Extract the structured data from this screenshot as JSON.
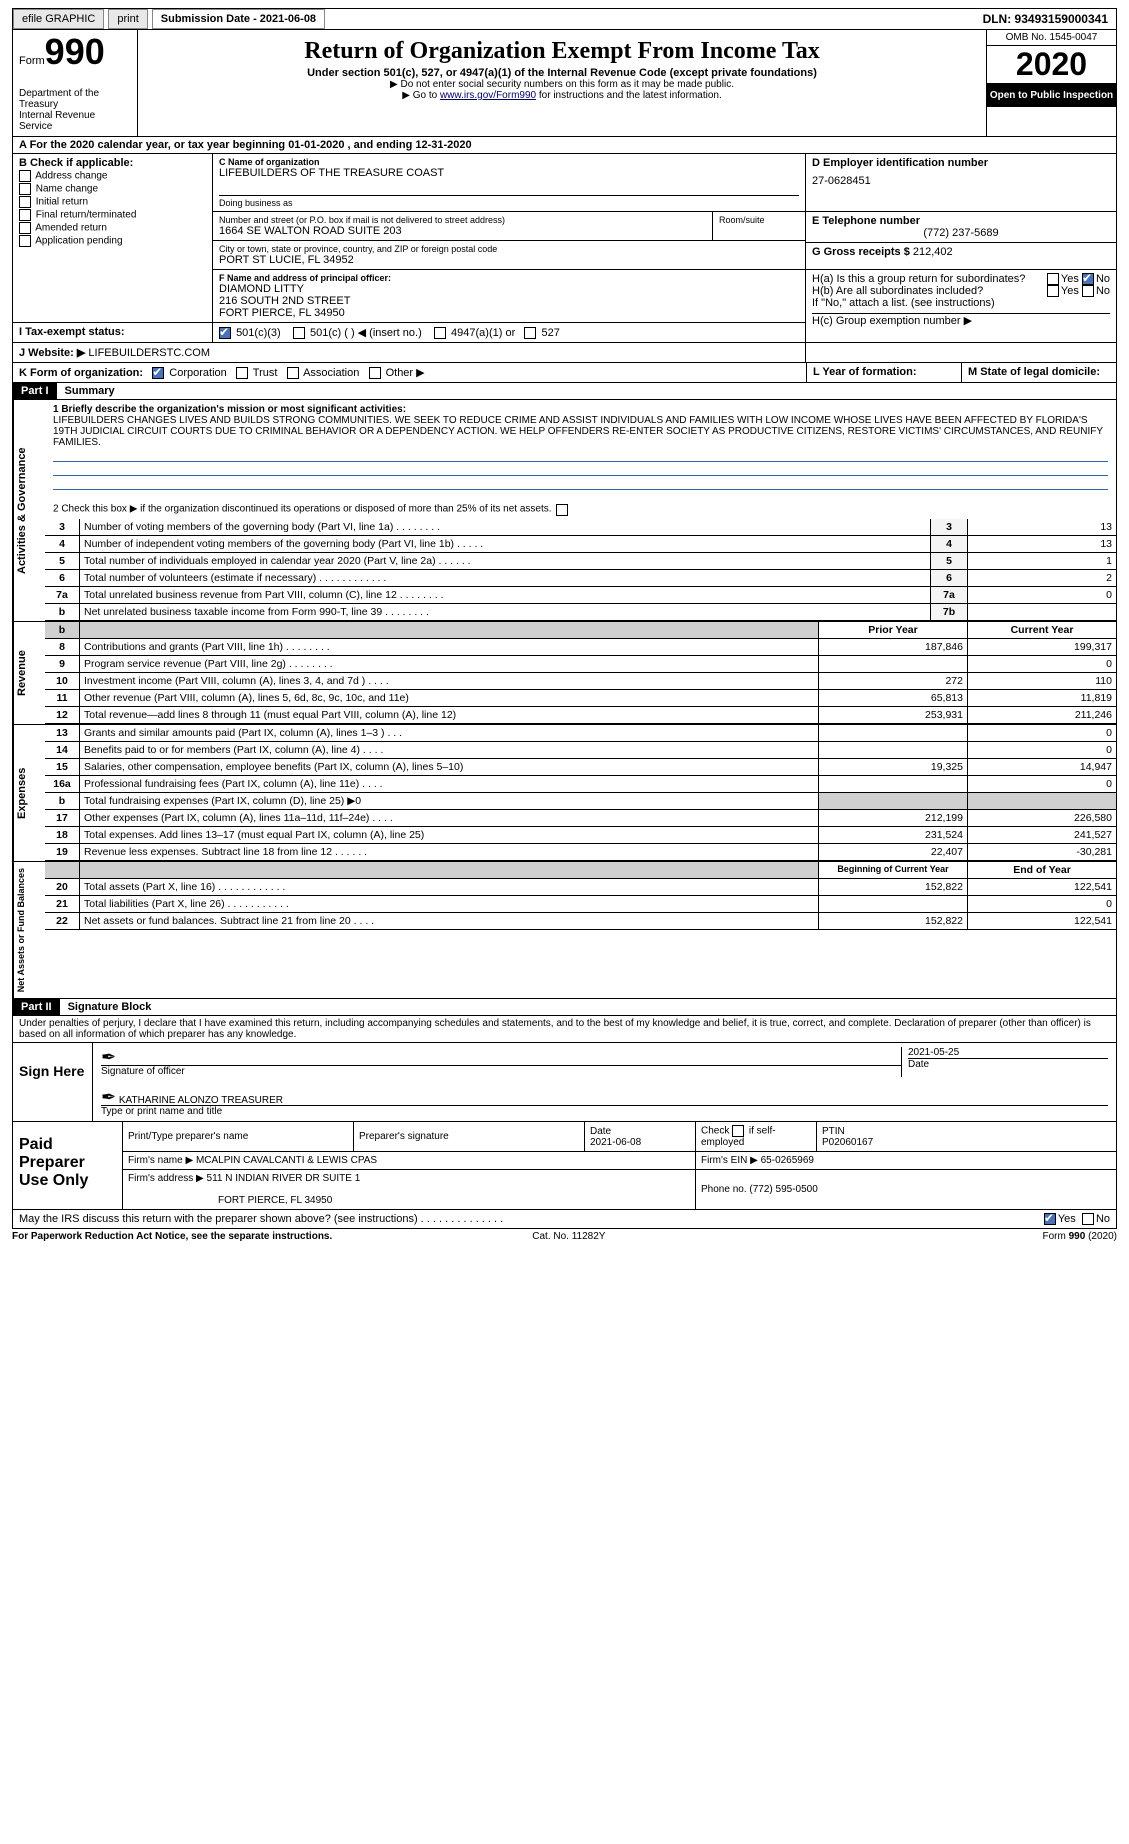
{
  "topbar": {
    "efile": "efile GRAPHIC",
    "print": "print",
    "subdate_label": "Submission Date - 2021-06-08",
    "dln": "DLN: 93493159000341"
  },
  "header": {
    "form": "Form",
    "form_num": "990",
    "dept": "Department of the Treasury\nInternal Revenue Service",
    "title": "Return of Organization Exempt From Income Tax",
    "subtitle": "Under section 501(c), 527, or 4947(a)(1) of the Internal Revenue Code (except private foundations)",
    "note1": "▶ Do not enter social security numbers on this form as it may be made public.",
    "note2_pre": "▶ Go to ",
    "note2_link": "www.irs.gov/Form990",
    "note2_post": " for instructions and the latest information.",
    "omb": "OMB No. 1545-0047",
    "year": "2020",
    "open": "Open to Public Inspection"
  },
  "lineA": "A For the 2020 calendar year, or tax year beginning 01-01-2020    , and ending 12-31-2020",
  "boxB": {
    "label": "B Check if applicable:",
    "items": [
      "Address change",
      "Name change",
      "Initial return",
      "Final return/terminated",
      "Amended return",
      "Application pending"
    ]
  },
  "boxC": {
    "label": "C Name of organization",
    "name": "LIFEBUILDERS OF THE TREASURE COAST",
    "dba": "Doing business as",
    "street_label": "Number and street (or P.O. box if mail is not delivered to street address)",
    "room": "Room/suite",
    "street": "1664 SE WALTON ROAD SUITE 203",
    "city_label": "City or town, state or province, country, and ZIP or foreign postal code",
    "city": "PORT ST LUCIE, FL  34952"
  },
  "boxD": {
    "label": "D Employer identification number",
    "val": "27-0628451"
  },
  "boxE": {
    "label": "E Telephone number",
    "val": "(772) 237-5689"
  },
  "boxG": {
    "label": "G Gross receipts $",
    "val": "212,402"
  },
  "boxF": {
    "label": "F  Name and address of principal officer:",
    "name": "DIAMOND LITTY",
    "l1": "216 SOUTH 2ND STREET",
    "l2": "FORT PIERCE, FL  34950"
  },
  "boxH": {
    "a": "H(a)  Is this a group return for subordinates?",
    "b": "H(b)  Are all subordinates included?",
    "note": "If \"No,\" attach a list. (see instructions)",
    "c": "H(c)  Group exemption number ▶",
    "yes": "Yes",
    "no": "No"
  },
  "boxI": {
    "label": "I   Tax-exempt status:",
    "o1": "501(c)(3)",
    "o2": "501(c) (   ) ◀ (insert no.)",
    "o3": "4947(a)(1) or",
    "o4": "527"
  },
  "boxJ": {
    "label": "J  Website: ▶",
    "val": "LIFEBUILDERSTC.COM"
  },
  "boxK": {
    "label": "K Form of organization:",
    "o1": "Corporation",
    "o2": "Trust",
    "o3": "Association",
    "o4": "Other ▶"
  },
  "boxL": {
    "label": "L Year of formation:"
  },
  "boxM": {
    "label": "M State of legal domicile:"
  },
  "part1": {
    "hdr": "Part I",
    "title": "Summary"
  },
  "gov": {
    "side": "Activities & Governance",
    "l1": "1   Briefly describe the organization's mission or most significant activities:",
    "mission": "LIFEBUILDERS CHANGES LIVES AND BUILDS STRONG COMMUNITIES. WE SEEK TO REDUCE CRIME AND ASSIST INDIVIDUALS AND FAMILIES WITH LOW INCOME WHOSE LIVES HAVE BEEN AFFECTED BY FLORIDA'S 19TH JUDICIAL CIRCUIT COURTS DUE TO CRIMINAL BEHAVIOR OR A DEPENDENCY ACTION. WE HELP OFFENDERS RE-ENTER SOCIETY AS PRODUCTIVE CITIZENS, RESTORE VICTIMS' CIRCUMSTANCES, AND REUNIFY FAMILIES.",
    "l2": "2   Check this box ▶        if the organization discontinued its operations or disposed of more than 25% of its net assets.",
    "rows": [
      {
        "n": "3",
        "t": "Number of voting members of the governing body (Part VI, line 1a)  .   .   .   .   .   .   .   .",
        "lab": "3",
        "v": "13"
      },
      {
        "n": "4",
        "t": "Number of independent voting members of the governing body (Part VI, line 1b)  .   .   .   .   .",
        "lab": "4",
        "v": "13"
      },
      {
        "n": "5",
        "t": "Total number of individuals employed in calendar year 2020 (Part V, line 2a)  .   .   .   .   .   .",
        "lab": "5",
        "v": "1"
      },
      {
        "n": "6",
        "t": "Total number of volunteers (estimate if necessary)   .   .   .   .   .   .   .   .   .   .   .   .",
        "lab": "6",
        "v": "2"
      },
      {
        "n": "7a",
        "t": "Total unrelated business revenue from Part VIII, column (C), line 12  .   .   .   .   .   .   .   .",
        "lab": "7a",
        "v": "0"
      },
      {
        "n": "b",
        "t": "Net unrelated business taxable income from Form 990-T, line 39   .   .   .   .   .   .   .   .",
        "lab": "7b",
        "v": ""
      }
    ]
  },
  "rev": {
    "side": "Revenue",
    "hdr_prior": "Prior Year",
    "hdr_cur": "Current Year",
    "rows": [
      {
        "n": "8",
        "t": "Contributions and grants (Part VIII, line 1h)   .   .   .   .   .   .   .   .",
        "p": "187,846",
        "c": "199,317"
      },
      {
        "n": "9",
        "t": "Program service revenue (Part VIII, line 2g)   .   .   .   .   .   .   .   .",
        "p": "",
        "c": "0"
      },
      {
        "n": "10",
        "t": "Investment income (Part VIII, column (A), lines 3, 4, and 7d )  .   .   .   .",
        "p": "272",
        "c": "110"
      },
      {
        "n": "11",
        "t": "Other revenue (Part VIII, column (A), lines 5, 6d, 8c, 9c, 10c, and 11e)",
        "p": "65,813",
        "c": "11,819"
      },
      {
        "n": "12",
        "t": "Total revenue—add lines 8 through 11 (must equal Part VIII, column (A), line 12)",
        "p": "253,931",
        "c": "211,246"
      }
    ]
  },
  "exp": {
    "side": "Expenses",
    "rows": [
      {
        "n": "13",
        "t": "Grants and similar amounts paid (Part IX, column (A), lines 1–3 )  .   .   .",
        "p": "",
        "c": "0"
      },
      {
        "n": "14",
        "t": "Benefits paid to or for members (Part IX, column (A), line 4)  .   .   .   .",
        "p": "",
        "c": "0"
      },
      {
        "n": "15",
        "t": "Salaries, other compensation, employee benefits (Part IX, column (A), lines 5–10)",
        "p": "19,325",
        "c": "14,947"
      },
      {
        "n": "16a",
        "t": "Professional fundraising fees (Part IX, column (A), line 11e)  .   .   .   .",
        "p": "",
        "c": "0"
      },
      {
        "n": "b",
        "t": "Total fundraising expenses (Part IX, column (D), line 25) ▶0",
        "p": "shade",
        "c": "shade"
      },
      {
        "n": "17",
        "t": "Other expenses (Part IX, column (A), lines 11a–11d, 11f–24e)  .   .   .   .",
        "p": "212,199",
        "c": "226,580"
      },
      {
        "n": "18",
        "t": "Total expenses. Add lines 13–17 (must equal Part IX, column (A), line 25)",
        "p": "231,524",
        "c": "241,527"
      },
      {
        "n": "19",
        "t": "Revenue less expenses. Subtract line 18 from line 12  .   .   .   .   .   .",
        "p": "22,407",
        "c": "-30,281"
      }
    ]
  },
  "net": {
    "side": "Net Assets or Fund Balances",
    "hdr_beg": "Beginning of Current Year",
    "hdr_end": "End of Year",
    "rows": [
      {
        "n": "20",
        "t": "Total assets (Part X, line 16)   .   .   .   .   .   .   .   .   .   .   .   .",
        "p": "152,822",
        "c": "122,541"
      },
      {
        "n": "21",
        "t": "Total liabilities (Part X, line 26)   .   .   .   .   .   .   .   .   .   .   .",
        "p": "",
        "c": "0"
      },
      {
        "n": "22",
        "t": "Net assets or fund balances. Subtract line 21 from line 20   .   .   .   .",
        "p": "152,822",
        "c": "122,541"
      }
    ]
  },
  "part2": {
    "hdr": "Part II",
    "title": "Signature Block"
  },
  "decl": "Under penalties of perjury, I declare that I have examined this return, including accompanying schedules and statements, and to the best of my knowledge and belief, it is true, correct, and complete. Declaration of preparer (other than officer) is based on all information of which preparer has any knowledge.",
  "sign": {
    "here": "Sign Here",
    "sig": "Signature of officer",
    "date": "Date",
    "datev": "2021-05-25",
    "name": "KATHARINE ALONZO  TREASURER",
    "type": "Type or print name and title"
  },
  "prep": {
    "here": "Paid Preparer Use Only",
    "c1": "Print/Type preparer's name",
    "c2": "Preparer's signature",
    "c3": "Date",
    "c3v": "2021-06-08",
    "c4": "Check         if self-employed",
    "c5": "PTIN",
    "c5v": "P02060167",
    "firm": "Firm's name      ▶",
    "firmv": "MCALPIN CAVALCANTI & LEWIS CPAS",
    "ein": "Firm's EIN ▶",
    "einv": "65-0265969",
    "addr": "Firm's address ▶",
    "addrv": "511 N INDIAN RIVER DR SUITE 1",
    "addrv2": "FORT PIERCE, FL  34950",
    "phone": "Phone no.",
    "phonev": "(772) 595-0500"
  },
  "discuss": "May the IRS discuss this return with the preparer shown above? (see instructions)   .   .   .   .   .   .   .   .   .   .   .   .   .   .",
  "footer": {
    "l": "For Paperwork Reduction Act Notice, see the separate instructions.",
    "m": "Cat. No. 11282Y",
    "r": "Form 990 (2020)"
  }
}
